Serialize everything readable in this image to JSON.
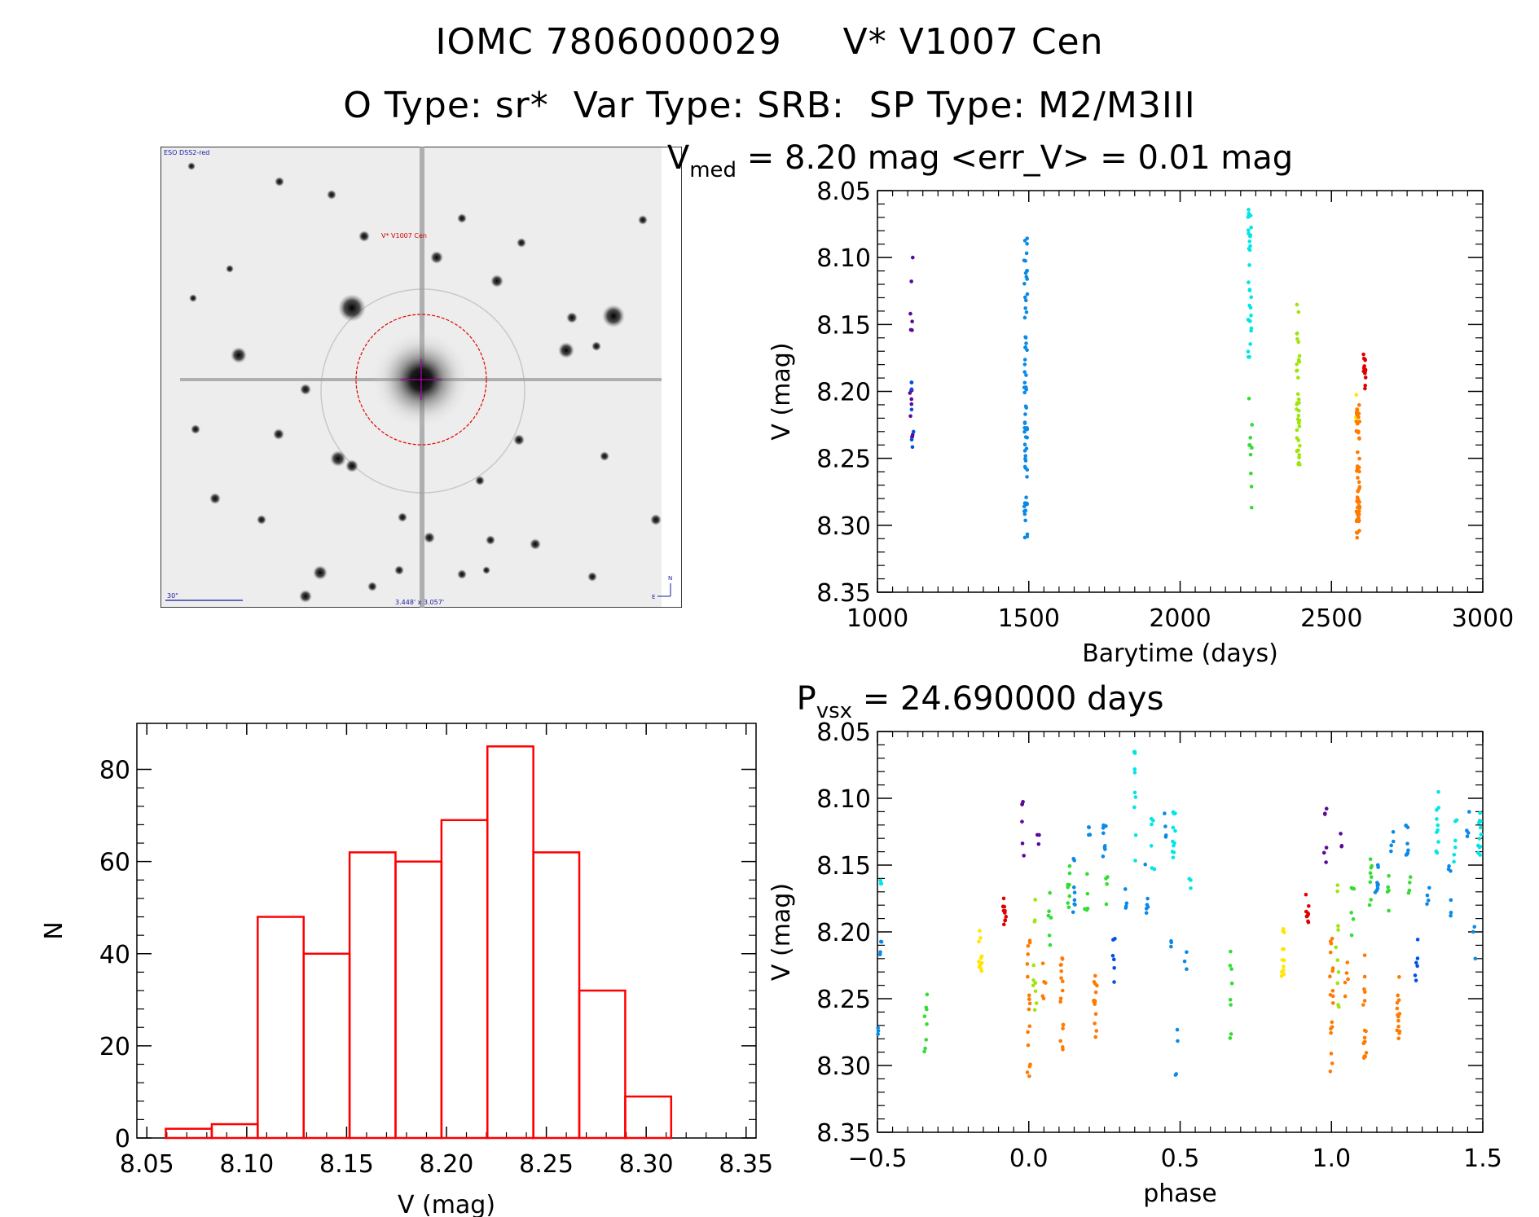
{
  "header": {
    "title_left": "IOMC 7806000029",
    "title_right": "V* V1007 Cen",
    "subtitle": "O Type: sr*  Var Type: SRB:  SP Type: M2/M3III"
  },
  "finder": {
    "survey_label": "ESO DSS2-red",
    "target_label": "V* V1007 Cen",
    "scale_label": "30\"",
    "fov_label": "3.448' x 3.057'",
    "north_label": "N",
    "east_label": "E"
  },
  "colors": {
    "histogram": "#ff0000",
    "axis": "#000000",
    "series": [
      "#5a0a96",
      "#0050e6",
      "#0a8ae6",
      "#00e6e6",
      "#33dd33",
      "#9ee60a",
      "#ffe600",
      "#ff7a00",
      "#e00000"
    ]
  },
  "chart_data": [
    {
      "type": "scatter",
      "name": "light-curve",
      "title": "V_med = 8.20 mag <err_V> = 0.01 mag",
      "title_main": "V",
      "title_sub": "med",
      "title_rest": " = 8.20 mag <err_V> = 0.01 mag",
      "xlabel": "Barytime (days)",
      "ylabel": "V (mag)",
      "xlim": [
        1000,
        3000
      ],
      "ylim": [
        8.35,
        8.05
      ],
      "y_inverted": true,
      "xticks": [
        1000,
        1500,
        2000,
        2500,
        3000
      ],
      "xtick_labels": [
        "1000",
        "1500",
        "2000",
        "2500",
        "3000"
      ],
      "yticks": [
        8.05,
        8.1,
        8.15,
        8.2,
        8.25,
        8.3,
        8.35
      ],
      "ytick_labels": [
        "8.05",
        "8.10",
        "8.15",
        "8.20",
        "8.25",
        "8.30",
        "8.35"
      ],
      "groups": [
        {
          "x": 1112,
          "ymin": 8.1,
          "ymax": 8.245,
          "n": 16,
          "color_index": 0
        },
        {
          "x": 1115,
          "ymin": 8.19,
          "ymax": 8.245,
          "n": 6,
          "color_index": 1
        },
        {
          "x": 1490,
          "ymin": 8.085,
          "ymax": 8.31,
          "n": 70,
          "color_index": 2
        },
        {
          "x": 2230,
          "ymin": 8.06,
          "ymax": 8.175,
          "n": 32,
          "color_index": 3
        },
        {
          "x": 2233,
          "ymin": 8.205,
          "ymax": 8.29,
          "n": 10,
          "color_index": 4
        },
        {
          "x": 2390,
          "ymin": 8.135,
          "ymax": 8.26,
          "n": 40,
          "color_index": 5
        },
        {
          "x": 2585,
          "ymin": 8.195,
          "ymax": 8.225,
          "n": 8,
          "color_index": 6
        },
        {
          "x": 2588,
          "ymin": 8.21,
          "ymax": 8.31,
          "n": 60,
          "color_index": 7
        },
        {
          "x": 2610,
          "ymin": 8.165,
          "ymax": 8.2,
          "n": 14,
          "color_index": 8
        }
      ]
    },
    {
      "type": "scatter",
      "name": "phase-curve",
      "title": "P_vsx = 24.690000 days",
      "title_main": "P",
      "title_sub": "vsx",
      "title_rest": " = 24.690000 days",
      "xlabel": "phase",
      "ylabel": "V (mag)",
      "xlim": [
        -0.5,
        1.5
      ],
      "ylim": [
        8.35,
        8.05
      ],
      "y_inverted": true,
      "xticks": [
        -0.5,
        0.0,
        0.5,
        1.0,
        1.5
      ],
      "xtick_labels": [
        "−0.5",
        "0.0",
        "0.5",
        "1.0",
        "1.5"
      ],
      "yticks": [
        8.05,
        8.1,
        8.15,
        8.2,
        8.25,
        8.3,
        8.35
      ],
      "ytick_labels": [
        "8.05",
        "8.10",
        "8.15",
        "8.20",
        "8.25",
        "8.30",
        "8.35"
      ],
      "groups": [
        {
          "x": -0.485,
          "ymin": 8.16,
          "ymax": 8.17,
          "n": 3,
          "color_index": 3
        },
        {
          "x": -0.49,
          "ymin": 8.205,
          "ymax": 8.23,
          "n": 4,
          "color_index": 2
        },
        {
          "x": -0.495,
          "ymin": 8.27,
          "ymax": 8.285,
          "n": 3,
          "color_index": 2
        },
        {
          "x": -0.34,
          "ymin": 8.205,
          "ymax": 8.29,
          "n": 8,
          "color_index": 4
        },
        {
          "x": -0.16,
          "ymin": 8.195,
          "ymax": 8.235,
          "n": 12,
          "color_index": 6
        },
        {
          "x": -0.08,
          "ymin": 8.17,
          "ymax": 8.195,
          "n": 10,
          "color_index": 8
        },
        {
          "x": -0.02,
          "ymin": 8.1,
          "ymax": 8.155,
          "n": 6,
          "color_index": 0
        },
        {
          "x": 0.0,
          "ymin": 8.205,
          "ymax": 8.31,
          "n": 18,
          "color_index": 7
        },
        {
          "x": 0.02,
          "ymin": 8.165,
          "ymax": 8.26,
          "n": 10,
          "color_index": 5
        },
        {
          "x": 0.03,
          "ymin": 8.125,
          "ymax": 8.14,
          "n": 3,
          "color_index": 0
        },
        {
          "x": 0.05,
          "ymin": 8.215,
          "ymax": 8.265,
          "n": 5,
          "color_index": 7
        },
        {
          "x": 0.07,
          "ymin": 8.165,
          "ymax": 8.21,
          "n": 6,
          "color_index": 4
        },
        {
          "x": 0.11,
          "ymin": 8.215,
          "ymax": 8.295,
          "n": 16,
          "color_index": 7
        },
        {
          "x": 0.13,
          "ymin": 8.14,
          "ymax": 8.185,
          "n": 8,
          "color_index": 4
        },
        {
          "x": 0.15,
          "ymin": 8.145,
          "ymax": 8.19,
          "n": 8,
          "color_index": 2
        },
        {
          "x": 0.19,
          "ymin": 8.155,
          "ymax": 8.185,
          "n": 5,
          "color_index": 4
        },
        {
          "x": 0.2,
          "ymin": 8.12,
          "ymax": 8.14,
          "n": 4,
          "color_index": 2
        },
        {
          "x": 0.22,
          "ymin": 8.23,
          "ymax": 8.285,
          "n": 14,
          "color_index": 7
        },
        {
          "x": 0.25,
          "ymin": 8.12,
          "ymax": 8.145,
          "n": 8,
          "color_index": 2
        },
        {
          "x": 0.26,
          "ymin": 8.155,
          "ymax": 8.18,
          "n": 4,
          "color_index": 4
        },
        {
          "x": 0.28,
          "ymin": 8.2,
          "ymax": 8.24,
          "n": 6,
          "color_index": 1
        },
        {
          "x": 0.32,
          "ymin": 8.165,
          "ymax": 8.185,
          "n": 4,
          "color_index": 2
        },
        {
          "x": 0.35,
          "ymin": 8.065,
          "ymax": 8.15,
          "n": 10,
          "color_index": 3
        },
        {
          "x": 0.39,
          "ymin": 8.145,
          "ymax": 8.19,
          "n": 6,
          "color_index": 2
        },
        {
          "x": 0.41,
          "ymin": 8.115,
          "ymax": 8.17,
          "n": 6,
          "color_index": 3
        },
        {
          "x": 0.45,
          "ymin": 8.11,
          "ymax": 8.13,
          "n": 4,
          "color_index": 2
        },
        {
          "x": 0.47,
          "ymin": 8.195,
          "ymax": 8.22,
          "n": 3,
          "color_index": 2
        },
        {
          "x": 0.48,
          "ymin": 8.11,
          "ymax": 8.145,
          "n": 12,
          "color_index": 3
        },
        {
          "x": 0.49,
          "ymin": 8.27,
          "ymax": 8.31,
          "n": 4,
          "color_index": 2
        },
        {
          "x": 0.52,
          "ymin": 8.21,
          "ymax": 8.23,
          "n": 3,
          "color_index": 2
        },
        {
          "x": 0.53,
          "ymin": 8.155,
          "ymax": 8.17,
          "n": 3,
          "color_index": 3
        },
        {
          "x": 0.67,
          "ymin": 8.205,
          "ymax": 8.29,
          "n": 8,
          "color_index": 4
        },
        {
          "x": 0.84,
          "ymin": 8.195,
          "ymax": 8.235,
          "n": 12,
          "color_index": 6
        },
        {
          "x": 0.92,
          "ymin": 8.17,
          "ymax": 8.195,
          "n": 10,
          "color_index": 8
        },
        {
          "x": 0.98,
          "ymin": 8.1,
          "ymax": 8.155,
          "n": 6,
          "color_index": 0
        },
        {
          "x": 1.0,
          "ymin": 8.205,
          "ymax": 8.31,
          "n": 18,
          "color_index": 7
        },
        {
          "x": 1.02,
          "ymin": 8.165,
          "ymax": 8.26,
          "n": 10,
          "color_index": 5
        },
        {
          "x": 1.03,
          "ymin": 8.125,
          "ymax": 8.14,
          "n": 3,
          "color_index": 0
        },
        {
          "x": 1.05,
          "ymin": 8.215,
          "ymax": 8.265,
          "n": 5,
          "color_index": 7
        },
        {
          "x": 1.07,
          "ymin": 8.165,
          "ymax": 8.21,
          "n": 6,
          "color_index": 4
        },
        {
          "x": 1.11,
          "ymin": 8.215,
          "ymax": 8.295,
          "n": 16,
          "color_index": 7
        },
        {
          "x": 1.13,
          "ymin": 8.14,
          "ymax": 8.185,
          "n": 8,
          "color_index": 4
        },
        {
          "x": 1.15,
          "ymin": 8.145,
          "ymax": 8.19,
          "n": 8,
          "color_index": 2
        },
        {
          "x": 1.19,
          "ymin": 8.155,
          "ymax": 8.185,
          "n": 5,
          "color_index": 4
        },
        {
          "x": 1.2,
          "ymin": 8.12,
          "ymax": 8.14,
          "n": 4,
          "color_index": 2
        },
        {
          "x": 1.22,
          "ymin": 8.23,
          "ymax": 8.285,
          "n": 14,
          "color_index": 7
        },
        {
          "x": 1.25,
          "ymin": 8.12,
          "ymax": 8.145,
          "n": 8,
          "color_index": 2
        },
        {
          "x": 1.26,
          "ymin": 8.155,
          "ymax": 8.18,
          "n": 4,
          "color_index": 4
        },
        {
          "x": 1.28,
          "ymin": 8.2,
          "ymax": 8.24,
          "n": 6,
          "color_index": 1
        },
        {
          "x": 1.32,
          "ymin": 8.165,
          "ymax": 8.185,
          "n": 4,
          "color_index": 2
        },
        {
          "x": 1.35,
          "ymin": 8.065,
          "ymax": 8.15,
          "n": 10,
          "color_index": 3
        },
        {
          "x": 1.39,
          "ymin": 8.145,
          "ymax": 8.19,
          "n": 6,
          "color_index": 2
        },
        {
          "x": 1.41,
          "ymin": 8.115,
          "ymax": 8.17,
          "n": 6,
          "color_index": 3
        },
        {
          "x": 1.45,
          "ymin": 8.11,
          "ymax": 8.13,
          "n": 4,
          "color_index": 2
        },
        {
          "x": 1.47,
          "ymin": 8.195,
          "ymax": 8.22,
          "n": 3,
          "color_index": 2
        },
        {
          "x": 1.49,
          "ymin": 8.11,
          "ymax": 8.145,
          "n": 12,
          "color_index": 3
        }
      ]
    },
    {
      "type": "bar",
      "name": "histogram",
      "title": "",
      "xlabel": "V (mag)",
      "ylabel": "N",
      "xlim": [
        8.045,
        8.355
      ],
      "ylim": [
        0,
        90
      ],
      "xticks": [
        8.05,
        8.1,
        8.15,
        8.2,
        8.25,
        8.3,
        8.35
      ],
      "xtick_labels": [
        "8.05",
        "8.10",
        "8.15",
        "8.20",
        "8.25",
        "8.30",
        "8.35"
      ],
      "yticks": [
        0,
        20,
        40,
        60,
        80
      ],
      "ytick_labels": [
        "0",
        "20",
        "40",
        "60",
        "80"
      ],
      "bin_edges": [
        8.0595,
        8.0825,
        8.1055,
        8.1285,
        8.1515,
        8.1745,
        8.1975,
        8.2205,
        8.2435,
        8.2665,
        8.2895,
        8.3125
      ],
      "values": [
        2,
        3,
        48,
        40,
        62,
        60,
        69,
        85,
        62,
        32,
        9
      ]
    }
  ]
}
